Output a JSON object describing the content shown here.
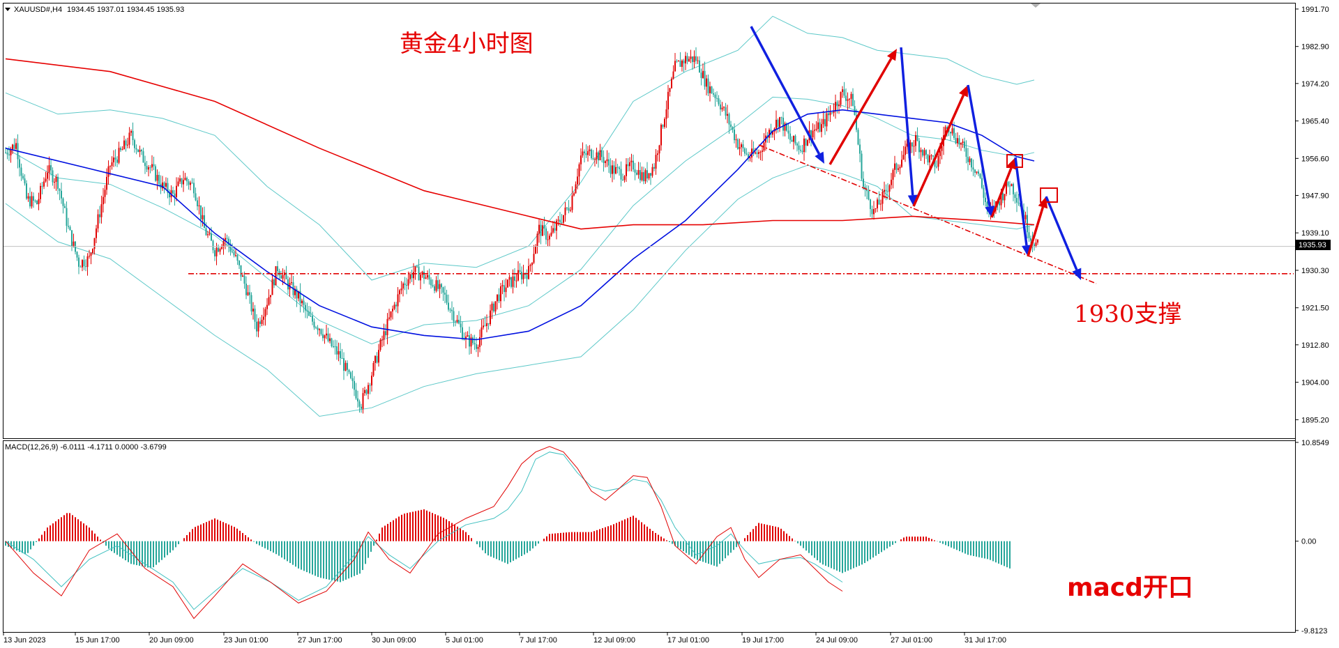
{
  "chart_data": [
    {
      "type": "candlestick",
      "symbol_header": "XAUUSD#,H4",
      "ohlc_readout": "1934.45 1937.01 1934.45 1935.93",
      "current_price_label": "1935.93",
      "ylim": [
        1891.0,
        1993.0
      ],
      "y_ticks": [
        "1991.70",
        "1982.90",
        "1974.20",
        "1965.40",
        "1956.60",
        "1947.90",
        "1939.10",
        "1930.30",
        "1921.50",
        "1912.80",
        "1904.00",
        "1895.20"
      ],
      "x_ticks": [
        "13 Jun 2023",
        "15 Jun 17:00",
        "20 Jun 09:00",
        "23 Jun 01:00",
        "27 Jun 17:00",
        "30 Jun 09:00",
        "5 Jul 01:00",
        "7 Jul 17:00",
        "12 Jul 09:00",
        "17 Jul 01:00",
        "19 Jul 17:00",
        "24 Jul 09:00",
        "27 Jul 01:00",
        "31 Jul 17:00"
      ],
      "close_path": [
        [
          0,
          1958
        ],
        [
          6,
          1960
        ],
        [
          12,
          1947
        ],
        [
          18,
          1946
        ],
        [
          24,
          1954
        ],
        [
          30,
          1951
        ],
        [
          36,
          1940
        ],
        [
          42,
          1932
        ],
        [
          48,
          1933
        ],
        [
          54,
          1944
        ],
        [
          60,
          1955
        ],
        [
          66,
          1958
        ],
        [
          72,
          1962
        ],
        [
          78,
          1957
        ],
        [
          84,
          1954
        ],
        [
          90,
          1950
        ],
        [
          96,
          1948
        ],
        [
          102,
          1952
        ],
        [
          108,
          1950
        ],
        [
          114,
          1940
        ],
        [
          120,
          1935
        ],
        [
          126,
          1938
        ],
        [
          132,
          1933
        ],
        [
          138,
          1926
        ],
        [
          144,
          1917
        ],
        [
          150,
          1923
        ],
        [
          156,
          1931
        ],
        [
          162,
          1927
        ],
        [
          168,
          1924
        ],
        [
          174,
          1919
        ],
        [
          180,
          1917
        ],
        [
          186,
          1913
        ],
        [
          192,
          1910
        ],
        [
          198,
          1904
        ],
        [
          204,
          1899
        ],
        [
          210,
          1906
        ],
        [
          216,
          1914
        ],
        [
          222,
          1921
        ],
        [
          228,
          1927
        ],
        [
          234,
          1930
        ],
        [
          240,
          1929
        ],
        [
          246,
          1927
        ],
        [
          252,
          1924
        ],
        [
          258,
          1919
        ],
        [
          264,
          1914
        ],
        [
          270,
          1913
        ],
        [
          276,
          1918
        ],
        [
          282,
          1924
        ],
        [
          288,
          1927
        ],
        [
          294,
          1929
        ],
        [
          300,
          1930
        ],
        [
          306,
          1940
        ],
        [
          312,
          1938
        ],
        [
          318,
          1942
        ],
        [
          324,
          1946
        ],
        [
          330,
          1957
        ],
        [
          336,
          1958
        ],
        [
          342,
          1957
        ],
        [
          348,
          1954
        ],
        [
          354,
          1953
        ],
        [
          360,
          1955
        ],
        [
          366,
          1952
        ],
        [
          372,
          1955
        ],
        [
          378,
          1967
        ],
        [
          384,
          1978
        ],
        [
          390,
          1980
        ],
        [
          396,
          1980
        ],
        [
          402,
          1974
        ],
        [
          408,
          1971
        ],
        [
          414,
          1966
        ],
        [
          420,
          1960
        ],
        [
          426,
          1957
        ],
        [
          432,
          1958
        ],
        [
          438,
          1963
        ],
        [
          444,
          1966
        ],
        [
          450,
          1961
        ],
        [
          456,
          1959
        ],
        [
          462,
          1963
        ],
        [
          468,
          1964
        ],
        [
          474,
          1968
        ],
        [
          480,
          1972
        ],
        [
          486,
          1970
        ],
        [
          492,
          1950
        ],
        [
          498,
          1944
        ],
        [
          504,
          1948
        ],
        [
          510,
          1954
        ],
        [
          516,
          1958
        ],
        [
          522,
          1961
        ],
        [
          528,
          1957
        ],
        [
          534,
          1955
        ],
        [
          540,
          1965
        ],
        [
          546,
          1961
        ],
        [
          552,
          1957
        ],
        [
          558,
          1953
        ],
        [
          564,
          1943
        ],
        [
          570,
          1947
        ],
        [
          576,
          1951
        ],
        [
          582,
          1946
        ],
        [
          588,
          1938
        ],
        [
          592,
          1936
        ]
      ],
      "ma_red": [
        [
          0,
          1980
        ],
        [
          60,
          1977
        ],
        [
          120,
          1970
        ],
        [
          180,
          1959
        ],
        [
          240,
          1949
        ],
        [
          300,
          1943
        ],
        [
          330,
          1940
        ],
        [
          360,
          1941
        ],
        [
          400,
          1941
        ],
        [
          440,
          1942
        ],
        [
          480,
          1942
        ],
        [
          520,
          1943
        ],
        [
          560,
          1942
        ],
        [
          590,
          1941
        ]
      ],
      "ma_blue": [
        [
          0,
          1959
        ],
        [
          60,
          1953
        ],
        [
          90,
          1950
        ],
        [
          120,
          1939
        ],
        [
          150,
          1930
        ],
        [
          180,
          1922
        ],
        [
          210,
          1917
        ],
        [
          240,
          1915
        ],
        [
          270,
          1914
        ],
        [
          300,
          1916
        ],
        [
          330,
          1922
        ],
        [
          360,
          1933
        ],
        [
          390,
          1942
        ],
        [
          420,
          1954
        ],
        [
          440,
          1963
        ],
        [
          460,
          1967
        ],
        [
          480,
          1968
        ],
        [
          500,
          1967
        ],
        [
          520,
          1966
        ],
        [
          540,
          1965
        ],
        [
          560,
          1962
        ],
        [
          580,
          1957
        ],
        [
          590,
          1956
        ]
      ],
      "bb_upper": [
        [
          0,
          1972
        ],
        [
          30,
          1967
        ],
        [
          60,
          1968
        ],
        [
          90,
          1966
        ],
        [
          120,
          1962
        ],
        [
          150,
          1950
        ],
        [
          180,
          1941
        ],
        [
          210,
          1928
        ],
        [
          240,
          1932
        ],
        [
          270,
          1931
        ],
        [
          300,
          1936
        ],
        [
          330,
          1951
        ],
        [
          360,
          1970
        ],
        [
          390,
          1977
        ],
        [
          420,
          1982
        ],
        [
          440,
          1990
        ],
        [
          460,
          1986
        ],
        [
          480,
          1985
        ],
        [
          500,
          1982
        ],
        [
          520,
          1981
        ],
        [
          540,
          1980
        ],
        [
          560,
          1976
        ],
        [
          580,
          1974
        ],
        [
          590,
          1975
        ]
      ],
      "bb_lower": [
        [
          0,
          1946
        ],
        [
          30,
          1937
        ],
        [
          60,
          1933
        ],
        [
          90,
          1924
        ],
        [
          120,
          1915
        ],
        [
          150,
          1907
        ],
        [
          180,
          1896
        ],
        [
          210,
          1898
        ],
        [
          240,
          1903
        ],
        [
          270,
          1906
        ],
        [
          300,
          1908
        ],
        [
          330,
          1910
        ],
        [
          360,
          1921
        ],
        [
          390,
          1935
        ],
        [
          420,
          1947
        ],
        [
          440,
          1952
        ],
        [
          460,
          1955
        ],
        [
          480,
          1953
        ],
        [
          500,
          1950
        ],
        [
          520,
          1943
        ],
        [
          540,
          1942
        ],
        [
          560,
          1941
        ],
        [
          580,
          1940
        ],
        [
          590,
          1941
        ]
      ],
      "support_level": 1929.5,
      "annotations": [
        "黄金4小时图",
        "1930支撑"
      ]
    },
    {
      "type": "macd",
      "label": "MACD(12,26,9) -6.0111 -4.1711 0.0000 -3.6799",
      "ylim": [
        -9.9,
        11.0
      ],
      "y_ticks": [
        "10.8549",
        "0.00",
        "-9.8123"
      ],
      "histogram": [
        [
          0,
          -0.5
        ],
        [
          30,
          -1.5
        ],
        [
          60,
          1.5
        ],
        [
          90,
          3.2
        ],
        [
          120,
          1.5
        ],
        [
          150,
          -1.0
        ],
        [
          180,
          -2.5
        ],
        [
          210,
          -3.0
        ],
        [
          240,
          -1.0
        ],
        [
          270,
          1.5
        ],
        [
          300,
          2.5
        ],
        [
          330,
          1.5
        ],
        [
          360,
          -0.3
        ],
        [
          390,
          -1.5
        ],
        [
          420,
          -3.0
        ],
        [
          450,
          -4.0
        ],
        [
          480,
          -4.5
        ],
        [
          510,
          -3.5
        ],
        [
          540,
          1.5
        ],
        [
          570,
          3.0
        ],
        [
          600,
          3.5
        ],
        [
          630,
          2.5
        ],
        [
          660,
          1.0
        ],
        [
          690,
          -1.5
        ],
        [
          720,
          -2.5
        ],
        [
          750,
          -1.2
        ],
        [
          780,
          0.8
        ],
        [
          810,
          1.0
        ],
        [
          840,
          1.0
        ],
        [
          870,
          1.8
        ],
        [
          900,
          2.8
        ],
        [
          930,
          1.0
        ],
        [
          960,
          -0.5
        ],
        [
          990,
          -2.0
        ],
        [
          1020,
          -2.8
        ],
        [
          1050,
          -0.5
        ],
        [
          1080,
          2.0
        ],
        [
          1110,
          1.5
        ],
        [
          1140,
          -0.5
        ],
        [
          1170,
          -2.5
        ],
        [
          1200,
          -3.5
        ],
        [
          1230,
          -2.5
        ],
        [
          1260,
          -1.0
        ],
        [
          1290,
          0.5
        ],
        [
          1320,
          0.5
        ],
        [
          1350,
          -0.5
        ],
        [
          1380,
          -1.5
        ],
        [
          1410,
          -2.0
        ],
        [
          1440,
          -3.0
        ]
      ],
      "macd_line": [
        [
          0,
          0
        ],
        [
          40,
          -3.5
        ],
        [
          80,
          -6.0
        ],
        [
          120,
          -1.0
        ],
        [
          160,
          0.8
        ],
        [
          200,
          -3.0
        ],
        [
          240,
          -5.0
        ],
        [
          270,
          -8.5
        ],
        [
          300,
          -6.0
        ],
        [
          340,
          -2.5
        ],
        [
          380,
          -4.5
        ],
        [
          420,
          -6.8
        ],
        [
          460,
          -5.5
        ],
        [
          500,
          -2.0
        ],
        [
          520,
          1.0
        ],
        [
          550,
          -2.0
        ],
        [
          580,
          -3.5
        ],
        [
          620,
          0.8
        ],
        [
          660,
          2.5
        ],
        [
          700,
          3.8
        ],
        [
          720,
          6.0
        ],
        [
          740,
          8.5
        ],
        [
          760,
          9.8
        ],
        [
          780,
          10.4
        ],
        [
          800,
          9.8
        ],
        [
          820,
          8.0
        ],
        [
          840,
          5.5
        ],
        [
          860,
          4.5
        ],
        [
          880,
          5.8
        ],
        [
          900,
          7.2
        ],
        [
          920,
          7.0
        ],
        [
          940,
          3.8
        ],
        [
          960,
          -0.5
        ],
        [
          990,
          -2.5
        ],
        [
          1020,
          0.5
        ],
        [
          1040,
          1.5
        ],
        [
          1060,
          -2.0
        ],
        [
          1080,
          -4.0
        ],
        [
          1110,
          -2.0
        ],
        [
          1140,
          -1.5
        ],
        [
          1160,
          -3.0
        ],
        [
          1180,
          -4.5
        ],
        [
          1200,
          -5.5
        ]
      ],
      "signal_line": [
        [
          0,
          0
        ],
        [
          40,
          -2.0
        ],
        [
          80,
          -5.0
        ],
        [
          120,
          -2.0
        ],
        [
          160,
          -0.5
        ],
        [
          200,
          -2.5
        ],
        [
          240,
          -4.5
        ],
        [
          270,
          -7.5
        ],
        [
          300,
          -5.5
        ],
        [
          340,
          -3.0
        ],
        [
          380,
          -4.5
        ],
        [
          420,
          -6.5
        ],
        [
          460,
          -5.0
        ],
        [
          500,
          -1.5
        ],
        [
          520,
          0.5
        ],
        [
          550,
          -1.5
        ],
        [
          580,
          -3.0
        ],
        [
          620,
          0.0
        ],
        [
          660,
          1.8
        ],
        [
          700,
          2.5
        ],
        [
          720,
          3.5
        ],
        [
          740,
          5.5
        ],
        [
          760,
          9.0
        ],
        [
          780,
          9.8
        ],
        [
          800,
          9.5
        ],
        [
          820,
          7.5
        ],
        [
          840,
          6.0
        ],
        [
          860,
          5.5
        ],
        [
          880,
          5.8
        ],
        [
          900,
          6.8
        ],
        [
          920,
          6.5
        ],
        [
          940,
          4.5
        ],
        [
          960,
          1.5
        ],
        [
          990,
          -1.5
        ],
        [
          1020,
          -0.5
        ],
        [
          1040,
          0.8
        ],
        [
          1060,
          -1.0
        ],
        [
          1080,
          -2.5
        ],
        [
          1110,
          -2.0
        ],
        [
          1140,
          -1.8
        ],
        [
          1160,
          -2.5
        ],
        [
          1180,
          -3.5
        ],
        [
          1200,
          -4.5
        ]
      ],
      "annotations": [
        "macd开口"
      ]
    }
  ]
}
